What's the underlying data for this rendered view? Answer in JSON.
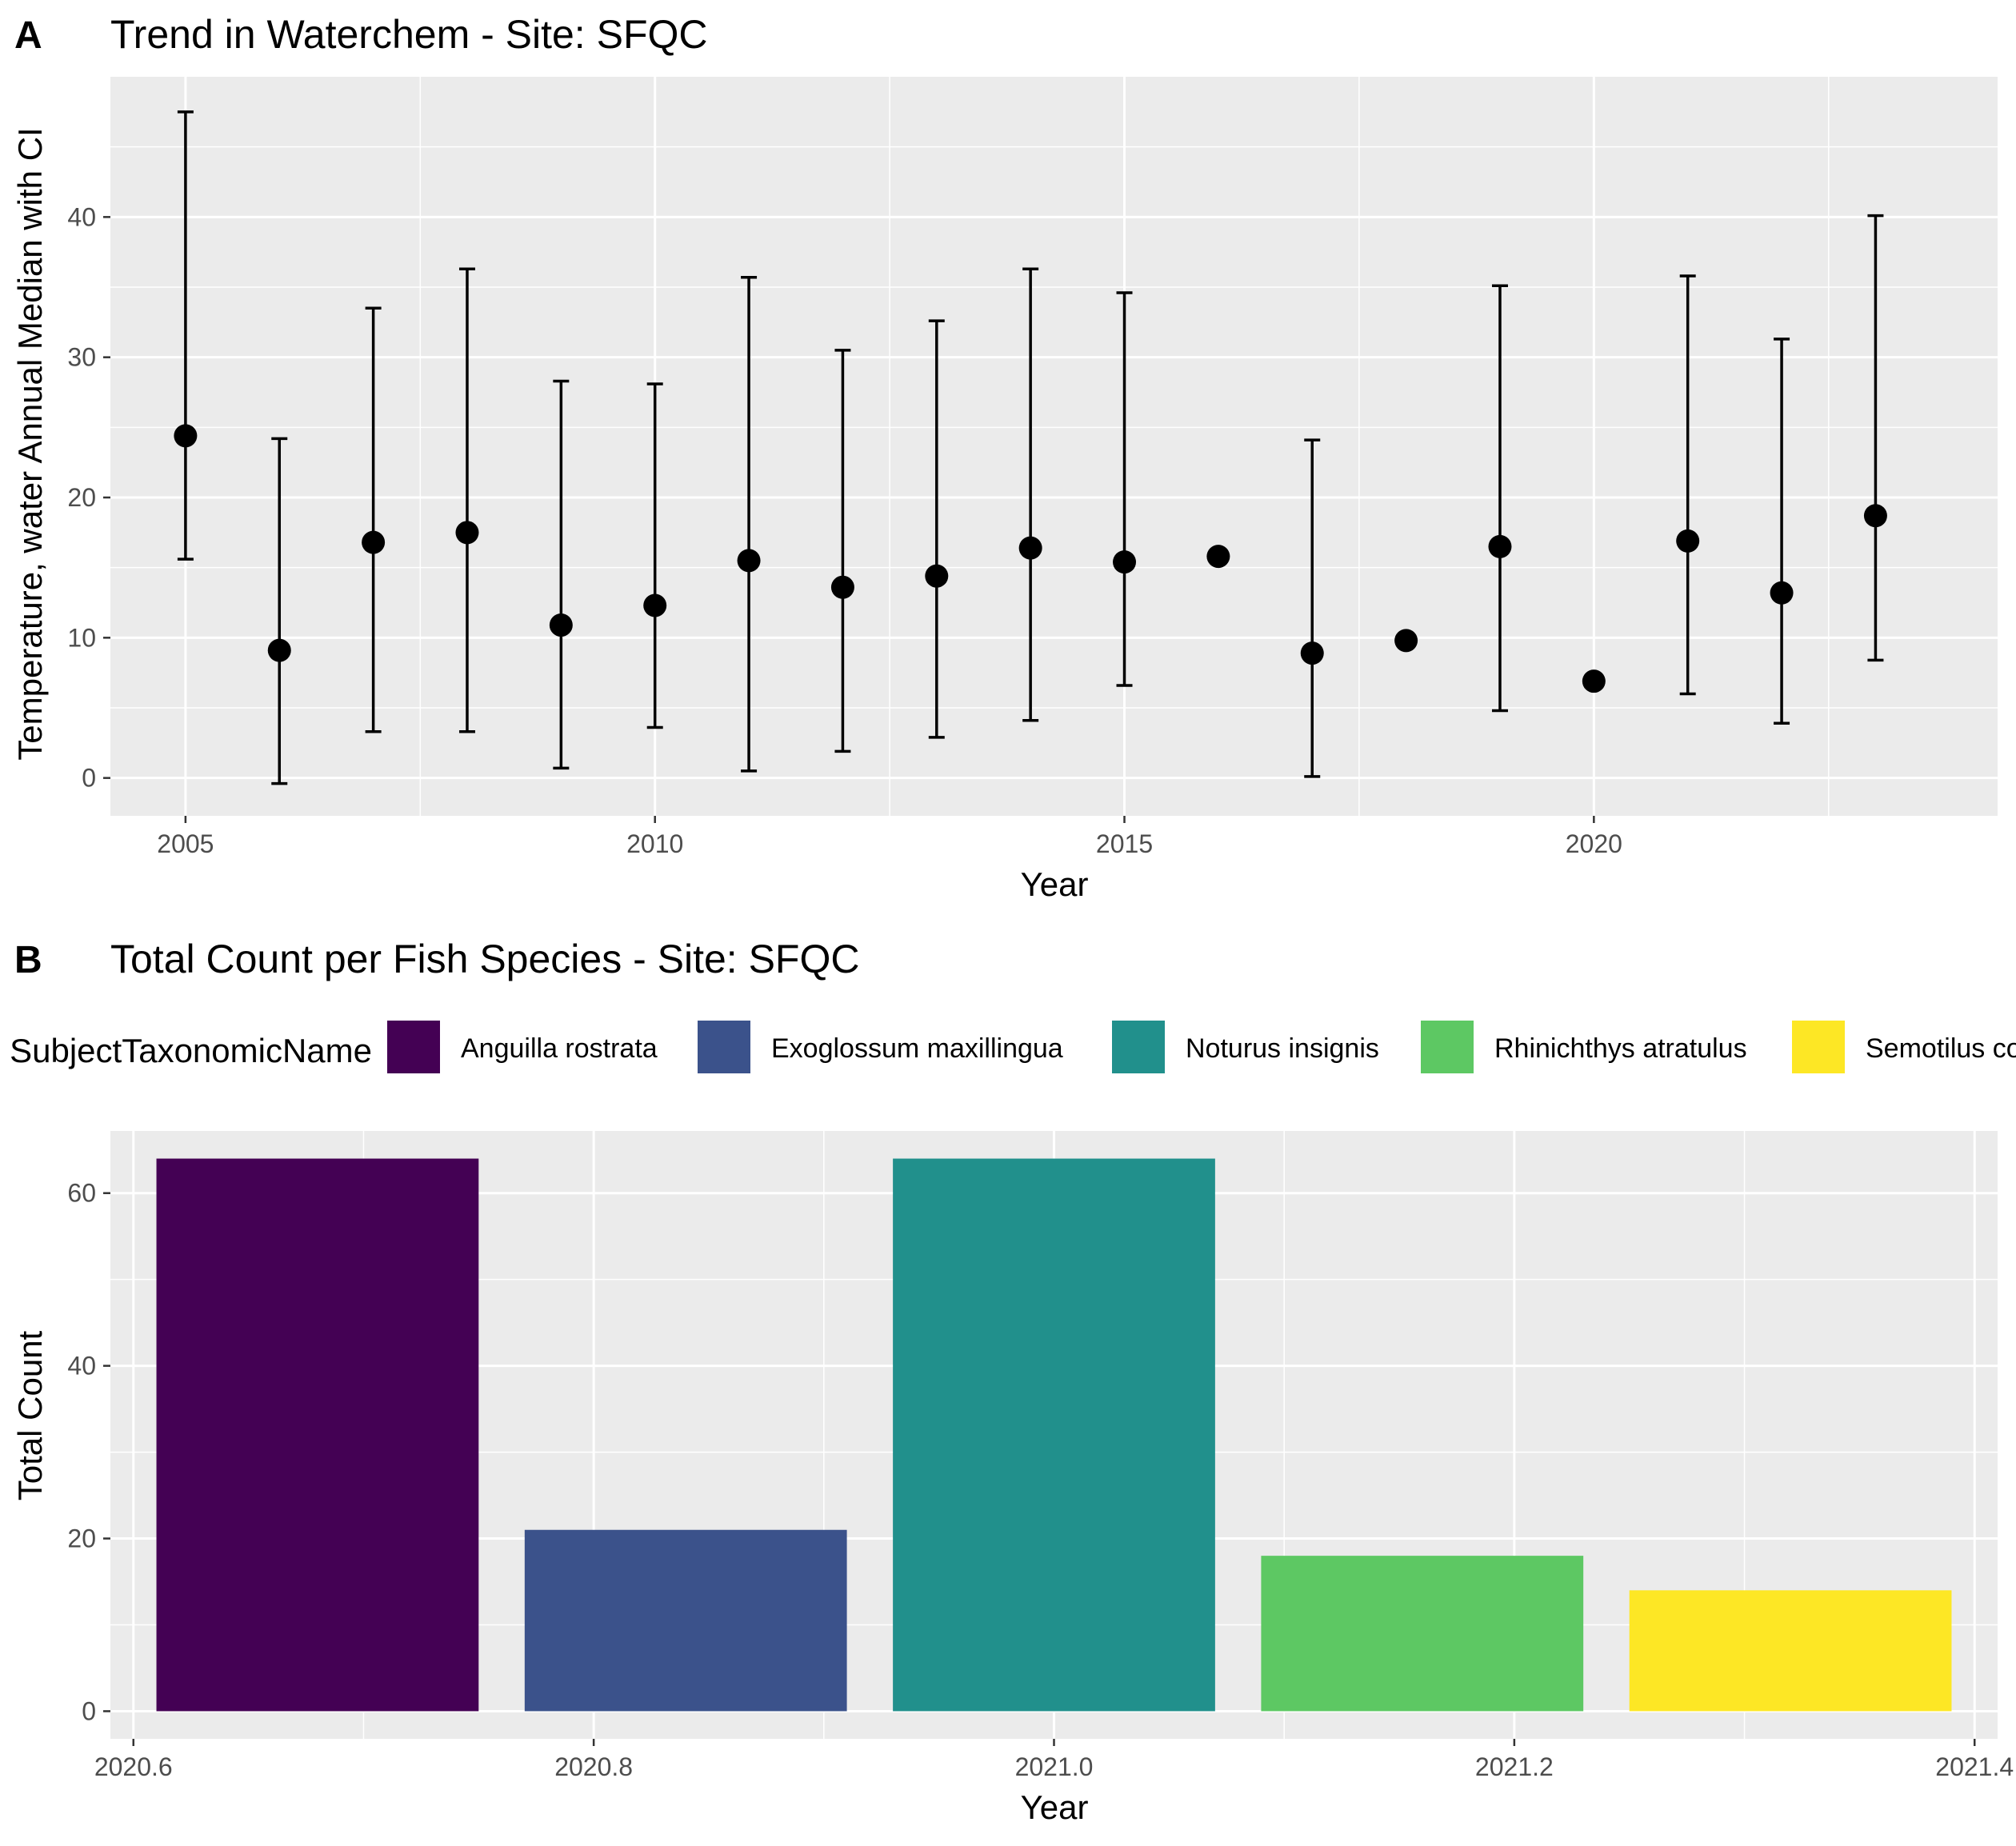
{
  "chart_data": [
    {
      "panel": "A",
      "type": "scatter",
      "title": "Trend in Waterchem - Site: SFQC",
      "xlabel": "Year",
      "ylabel": "Temperature, water Annual Median with CI",
      "xlim": [
        2004.2,
        2024.3
      ],
      "ylim": [
        -2.7,
        50
      ],
      "xticks": [
        2005,
        2010,
        2015,
        2020
      ],
      "yticks": [
        0,
        10,
        20,
        30,
        40
      ],
      "points": [
        {
          "x": 2005,
          "y": 24.4,
          "lo": 15.6,
          "hi": 47.5
        },
        {
          "x": 2006,
          "y": 9.1,
          "lo": -0.4,
          "hi": 24.2
        },
        {
          "x": 2007,
          "y": 16.8,
          "lo": 3.3,
          "hi": 33.5
        },
        {
          "x": 2008,
          "y": 17.5,
          "lo": 3.3,
          "hi": 36.3
        },
        {
          "x": 2009,
          "y": 10.9,
          "lo": 0.7,
          "hi": 28.3
        },
        {
          "x": 2010,
          "y": 12.3,
          "lo": 3.6,
          "hi": 28.1
        },
        {
          "x": 2011,
          "y": 15.5,
          "lo": 0.5,
          "hi": 35.7
        },
        {
          "x": 2012,
          "y": 13.6,
          "lo": 1.9,
          "hi": 30.5
        },
        {
          "x": 2013,
          "y": 14.4,
          "lo": 2.9,
          "hi": 32.6
        },
        {
          "x": 2014,
          "y": 16.4,
          "lo": 4.1,
          "hi": 36.3
        },
        {
          "x": 2015,
          "y": 15.4,
          "lo": 6.6,
          "hi": 34.6
        },
        {
          "x": 2016,
          "y": 15.8,
          "lo": null,
          "hi": null
        },
        {
          "x": 2017,
          "y": 8.9,
          "lo": 0.1,
          "hi": 24.1
        },
        {
          "x": 2018,
          "y": 9.8,
          "lo": null,
          "hi": null
        },
        {
          "x": 2019,
          "y": 16.5,
          "lo": 4.8,
          "hi": 35.1
        },
        {
          "x": 2020,
          "y": 6.9,
          "lo": null,
          "hi": null
        },
        {
          "x": 2021,
          "y": 16.9,
          "lo": 6.0,
          "hi": 35.8
        },
        {
          "x": 2022,
          "y": 13.2,
          "lo": 3.9,
          "hi": 31.3
        },
        {
          "x": 2023,
          "y": 18.7,
          "lo": 8.4,
          "hi": 40.1
        }
      ]
    },
    {
      "panel": "B",
      "type": "bar",
      "title": "Total Count per Fish Species - Site: SFQC",
      "xlabel": "Year",
      "ylabel": "Total Count",
      "legend_title": "SubjectTaxonomicName",
      "legend_position": "top",
      "xlim": [
        2020.59,
        2021.41
      ],
      "ylim": [
        -3.2,
        67.2
      ],
      "xticks": [
        2020.6,
        2020.8,
        2021.0,
        2021.2,
        2021.4
      ],
      "xtick_labels": [
        "2020.6",
        "2020.8",
        "2021.0",
        "2021.2",
        "2021.4"
      ],
      "yticks": [
        0,
        20,
        40,
        60
      ],
      "series": [
        {
          "name": "Anguilla rostrata",
          "center": 2020.68,
          "width": 0.14,
          "value": 64,
          "color": "#440154"
        },
        {
          "name": "Exoglossum maxillingua",
          "center": 2020.84,
          "width": 0.14,
          "value": 21,
          "color": "#3B528B"
        },
        {
          "name": "Noturus insignis",
          "center": 2021.0,
          "width": 0.14,
          "value": 64,
          "color": "#21908C"
        },
        {
          "name": "Rhinichthys atratulus",
          "center": 2021.16,
          "width": 0.14,
          "value": 18,
          "color": "#5DC863"
        },
        {
          "name": "Semotilus corporalis",
          "center": 2021.32,
          "width": 0.14,
          "value": 14,
          "color": "#FDE725"
        }
      ]
    }
  ],
  "colors": {
    "panel_bg": "#EBEBEB",
    "grid_major": "#FFFFFF",
    "point": "#000000"
  }
}
